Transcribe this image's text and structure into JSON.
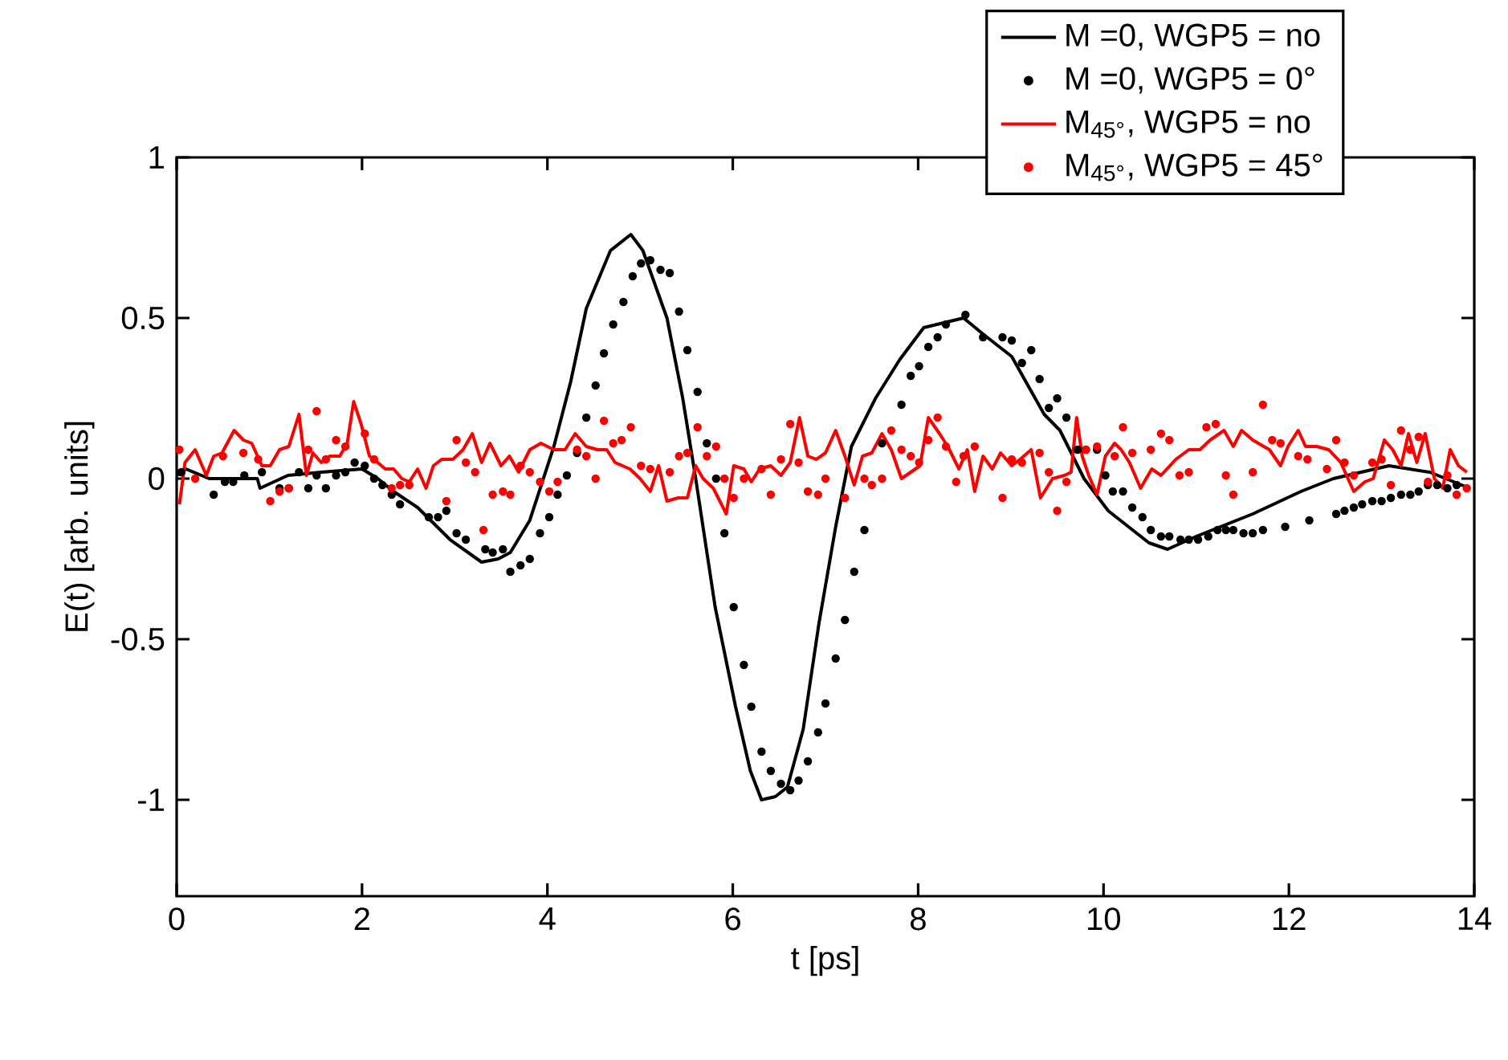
{
  "chart_data": {
    "type": "line",
    "xlabel": "t [ps]",
    "ylabel": "E(t) [arb. units]",
    "xlim": [
      0,
      14
    ],
    "ylim": [
      -1.3,
      1
    ],
    "xticks": [
      0,
      2,
      4,
      6,
      8,
      10,
      12,
      14
    ],
    "yticks": [
      -1,
      -0.5,
      0,
      0.5,
      1
    ],
    "grid": false,
    "legend": "top right",
    "series": [
      {
        "name": "M =0, WGP5 = no",
        "color": "#000000",
        "line_style": "solid",
        "x": [
          0,
          0.1,
          0.35,
          0.87,
          0.9,
          1.2,
          1.56,
          2,
          2.17,
          2.34,
          2.6,
          2.95,
          3.29,
          3.47,
          3.6,
          3.81,
          4.07,
          4.25,
          4.42,
          4.68,
          4.9,
          5.03,
          5.29,
          5.46,
          5.6,
          5.81,
          6.03,
          6.19,
          6.31,
          6.46,
          6.59,
          6.76,
          6.93,
          7.11,
          7.28,
          7.54,
          7.8,
          8.06,
          8.49,
          8.7,
          9.01,
          9.36,
          9.53,
          9.79,
          10.05,
          10.49,
          10.69,
          11.0,
          11.61,
          12.13,
          12.48,
          13.08,
          13.52,
          13.95
        ],
        "values": [
          0.01,
          0.03,
          0,
          0,
          -0.03,
          0.01,
          0.02,
          0.03,
          0,
          -0.04,
          -0.09,
          -0.19,
          -0.26,
          -0.25,
          -0.23,
          -0.13,
          0.1,
          0.3,
          0.53,
          0.71,
          0.76,
          0.71,
          0.5,
          0.25,
          0,
          -0.4,
          -0.71,
          -0.91,
          -1.0,
          -0.99,
          -0.96,
          -0.78,
          -0.45,
          -0.15,
          0.1,
          0.25,
          0.37,
          0.47,
          0.5,
          0.45,
          0.38,
          0.2,
          0.15,
          0,
          -0.1,
          -0.2,
          -0.22,
          -0.18,
          -0.11,
          -0.04,
          0,
          0.04,
          0.02,
          -0.03
        ]
      },
      {
        "name": "M =0, WGP5 = 0°",
        "type": "scatter",
        "color": "#000000",
        "marker": "circle",
        "x": [
          0.05,
          0.4,
          0.52,
          0.61,
          0.73,
          0.92,
          1.11,
          1.21,
          1.32,
          1.42,
          1.51,
          1.61,
          1.72,
          1.82,
          1.92,
          2.03,
          2.13,
          2.22,
          2.32,
          2.41,
          2.72,
          2.82,
          2.91,
          3.02,
          3.12,
          3.33,
          3.41,
          3.52,
          3.6,
          3.71,
          3.81,
          3.92,
          4.02,
          4.11,
          4.21,
          4.32,
          4.42,
          4.52,
          4.61,
          4.71,
          4.82,
          4.92,
          5.01,
          5.11,
          5.22,
          5.32,
          5.42,
          5.51,
          5.62,
          5.72,
          5.82,
          5.91,
          6.01,
          6.12,
          6.2,
          6.31,
          6.41,
          6.52,
          6.62,
          6.71,
          6.81,
          6.92,
          7.0,
          7.11,
          7.21,
          7.31,
          7.42,
          7.61,
          7.71,
          7.82,
          7.92,
          8.01,
          8.11,
          8.21,
          8.3,
          8.51,
          8.7,
          8.91,
          9.01,
          9.12,
          9.22,
          9.31,
          9.41,
          9.5,
          9.6,
          9.72,
          9.81,
          9.93,
          10.02,
          10.1,
          10.21,
          10.31,
          10.42,
          10.51,
          10.62,
          10.71,
          10.83,
          10.92,
          11.02,
          11.13,
          11.23,
          11.32,
          11.4,
          11.51,
          11.61,
          11.72,
          11.96,
          12.22,
          12.51,
          12.6,
          12.7,
          12.79,
          12.9,
          13.0,
          13.1,
          13.21,
          13.31,
          13.4,
          13.5,
          13.6,
          13.71,
          13.81
        ],
        "values": [
          0.02,
          -0.05,
          -0.01,
          -0.01,
          0.01,
          0.02,
          -0.03,
          -0.03,
          0.02,
          -0.03,
          0.01,
          -0.03,
          0.01,
          0.02,
          0.05,
          0.04,
          0,
          -0.02,
          -0.05,
          -0.08,
          -0.12,
          -0.12,
          -0.1,
          -0.17,
          -0.19,
          -0.22,
          -0.23,
          -0.22,
          -0.29,
          -0.27,
          -0.25,
          -0.17,
          -0.12,
          -0.05,
          0.01,
          0.08,
          0.19,
          0.29,
          0.39,
          0.48,
          0.55,
          0.63,
          0.67,
          0.68,
          0.65,
          0.64,
          0.52,
          0.4,
          0.27,
          0.11,
          0,
          -0.17,
          -0.4,
          -0.58,
          -0.71,
          -0.85,
          -0.91,
          -0.95,
          -0.97,
          -0.94,
          -0.88,
          -0.79,
          -0.7,
          -0.56,
          -0.44,
          -0.29,
          -0.16,
          0.11,
          null,
          0.23,
          0.32,
          0.35,
          0.41,
          0.44,
          0.48,
          0.51,
          0.44,
          0.44,
          0.43,
          0.36,
          0.4,
          0.31,
          0.22,
          0.25,
          0.19,
          0.09,
          0.09,
          0.09,
          0.01,
          -0.04,
          -0.04,
          -0.09,
          -0.12,
          -0.16,
          -0.18,
          -0.18,
          -0.19,
          -0.19,
          -0.19,
          -0.18,
          -0.16,
          -0.16,
          -0.16,
          -0.17,
          -0.17,
          -0.16,
          -0.15,
          -0.13,
          -0.11,
          -0.1,
          -0.09,
          -0.08,
          -0.07,
          -0.07,
          -0.06,
          -0.05,
          -0.05,
          -0.04,
          -0.02,
          -0.02,
          -0.03,
          -0.02
        ]
      },
      {
        "name": "M$_{45°}$, WGP5 = no",
        "color": "#ff0000",
        "line_style": "solid",
        "x": [
          0.03,
          0.09,
          0.2,
          0.32,
          0.4,
          0.49,
          0.62,
          0.72,
          0.81,
          0.92,
          1.01,
          1.11,
          1.21,
          1.32,
          1.4,
          1.47,
          1.56,
          1.65,
          1.76,
          1.84,
          1.91,
          1.99,
          2.08,
          2.17,
          2.25,
          2.34,
          2.43,
          2.51,
          2.6,
          2.69,
          2.77,
          2.86,
          2.98,
          3.09,
          3.19,
          3.29,
          3.38,
          3.5,
          3.59,
          3.69,
          3.81,
          3.93,
          4.07,
          4.19,
          4.3,
          4.42,
          4.54,
          4.64,
          4.73,
          4.89,
          5.0,
          5.11,
          5.2,
          5.29,
          5.41,
          5.51,
          5.6,
          5.68,
          5.79,
          5.93,
          6.01,
          6.12,
          6.2,
          6.29,
          6.41,
          6.52,
          6.62,
          6.72,
          6.81,
          6.9,
          7.0,
          7.11,
          7.21,
          7.31,
          7.4,
          7.5,
          7.61,
          7.71,
          7.82,
          7.92,
          8.02,
          8.11,
          8.23,
          8.32,
          8.44,
          8.53,
          8.61,
          8.7,
          8.8,
          8.89,
          9.01,
          9.1,
          9.22,
          9.32,
          9.45,
          9.58,
          9.65,
          9.71,
          9.77,
          9.84,
          9.93,
          10.02,
          10.12,
          10.19,
          10.28,
          10.4,
          10.52,
          10.62,
          10.78,
          10.92,
          11.04,
          11.15,
          11.3,
          11.4,
          11.49,
          11.61,
          11.79,
          11.91,
          11.99,
          12.1,
          12.18,
          12.3,
          12.43,
          12.56,
          12.7,
          12.82,
          12.91,
          13.03,
          13.12,
          13.21,
          13.29,
          13.38,
          13.47,
          13.57,
          13.66,
          13.74,
          13.83,
          13.92
        ],
        "values": [
          -0.08,
          0.05,
          0.09,
          0.01,
          0.07,
          0.08,
          0.15,
          0.12,
          0.11,
          0.04,
          0.04,
          0.09,
          0.1,
          0.2,
          0.01,
          0.08,
          0.05,
          0.07,
          0.07,
          0.11,
          0.24,
          0.17,
          0.07,
          0.05,
          0.03,
          0.03,
          0,
          -0.01,
          0.03,
          -0.03,
          0.04,
          0.06,
          0.06,
          0.09,
          0.14,
          0.05,
          0.11,
          0.04,
          0.07,
          0.02,
          0.09,
          0.11,
          0.09,
          0.09,
          0.14,
          0.1,
          0.09,
          0.09,
          0.05,
          0.03,
          0,
          -0.04,
          0.04,
          -0.07,
          -0.06,
          -0.06,
          0.04,
          0,
          -0.03,
          -0.11,
          0.04,
          0.03,
          -0.01,
          0.03,
          0.04,
          0.01,
          0.05,
          0.19,
          0.07,
          0.06,
          0.08,
          0.15,
          0.07,
          -0.02,
          0.07,
          0.08,
          0.14,
          0.09,
          0,
          0.02,
          0.04,
          0.19,
          0.14,
          0.1,
          0.03,
          0.09,
          -0.04,
          0.07,
          0.03,
          0.08,
          0.04,
          0.06,
          0.09,
          -0.06,
          0,
          0.01,
          0.02,
          0.19,
          0.07,
          0.01,
          -0.05,
          0.07,
          0.11,
          0.09,
          0.05,
          -0.03,
          0.03,
          0.01,
          0.06,
          0.09,
          0.09,
          0.12,
          0.15,
          0.1,
          0.15,
          0.12,
          0.09,
          0.04,
          0.1,
          0.15,
          0.1,
          0.1,
          0.09,
          0.05,
          -0.04,
          -0.01,
          0,
          0.12,
          0.09,
          0.04,
          0.14,
          0.05,
          0.14,
          0,
          -0.03,
          0.09,
          0.04,
          0.02
        ]
      },
      {
        "name": "M$_{45°}$, WGP5 = 45°",
        "type": "scatter",
        "color": "#ff0000",
        "marker": "circle",
        "x": [
          0.03,
          0.2,
          0.5,
          0.72,
          0.88,
          1.01,
          1.11,
          1.21,
          1.42,
          1.51,
          1.61,
          1.72,
          1.82,
          2.03,
          2.13,
          2.32,
          2.41,
          2.51,
          2.91,
          3.02,
          3.12,
          3.22,
          3.31,
          3.41,
          3.52,
          3.6,
          3.71,
          3.81,
          3.92,
          4.02,
          4.11,
          4.32,
          4.42,
          4.52,
          4.61,
          4.71,
          4.8,
          4.9,
          5.01,
          5.11,
          5.32,
          5.42,
          5.51,
          5.62,
          5.72,
          5.82,
          5.91,
          6.01,
          6.12,
          6.31,
          6.41,
          6.52,
          6.62,
          6.71,
          6.81,
          6.92,
          7.0,
          7.21,
          7.42,
          7.5,
          7.61,
          7.71,
          7.82,
          7.92,
          8.01,
          8.11,
          8.21,
          8.3,
          8.41,
          8.49,
          8.61,
          8.91,
          9.01,
          9.12,
          9.31,
          9.41,
          9.5,
          9.6,
          9.81,
          9.93,
          10.12,
          10.21,
          10.31,
          10.51,
          10.62,
          10.71,
          10.82,
          10.92,
          11.11,
          11.21,
          11.32,
          11.4,
          11.61,
          11.72,
          11.82,
          11.91,
          12.1,
          12.2,
          12.41,
          12.51,
          12.6,
          12.7,
          12.9,
          13.0,
          13.1,
          13.21,
          13.31,
          13.4,
          13.5,
          13.71,
          13.81,
          13.92
        ],
        "values": [
          0.09,
          0,
          0.07,
          0.08,
          0.06,
          -0.07,
          -0.04,
          -0.03,
          0.09,
          0.21,
          0.06,
          0.12,
          0.1,
          0.14,
          0.06,
          -0.03,
          -0.02,
          -0.02,
          -0.07,
          0.12,
          0.05,
          0.02,
          -0.16,
          -0.05,
          -0.04,
          -0.05,
          0.04,
          0.02,
          -0.01,
          -0.04,
          -0.01,
          0.09,
          0.07,
          0,
          0.18,
          0.11,
          0.12,
          0.16,
          0.04,
          0.03,
          0.02,
          0.07,
          0.08,
          0.16,
          0.07,
          0.1,
          0,
          -0.06,
          0,
          0.03,
          -0.05,
          0.06,
          0.17,
          0.05,
          -0.04,
          -0.05,
          0,
          -0.06,
          0,
          -0.02,
          0,
          0.15,
          0.09,
          0.07,
          0.05,
          0.12,
          0.19,
          0.1,
          -0.01,
          0.07,
          0.1,
          -0.06,
          0.06,
          0.05,
          0.08,
          0.02,
          -0.1,
          -0.01,
          0.09,
          0.1,
          0.07,
          0.16,
          0.08,
          0.09,
          0.14,
          0.12,
          0.01,
          0.02,
          0.16,
          0.17,
          0.01,
          -0.05,
          0.02,
          0.23,
          0.12,
          0.11,
          0.07,
          0.06,
          0.03,
          0.12,
          0.05,
          0.01,
          0.05,
          0.06,
          -0.02,
          0.15,
          0.09,
          0.13,
          -0.01,
          0.01,
          -0.05,
          -0.03
        ]
      }
    ]
  }
}
